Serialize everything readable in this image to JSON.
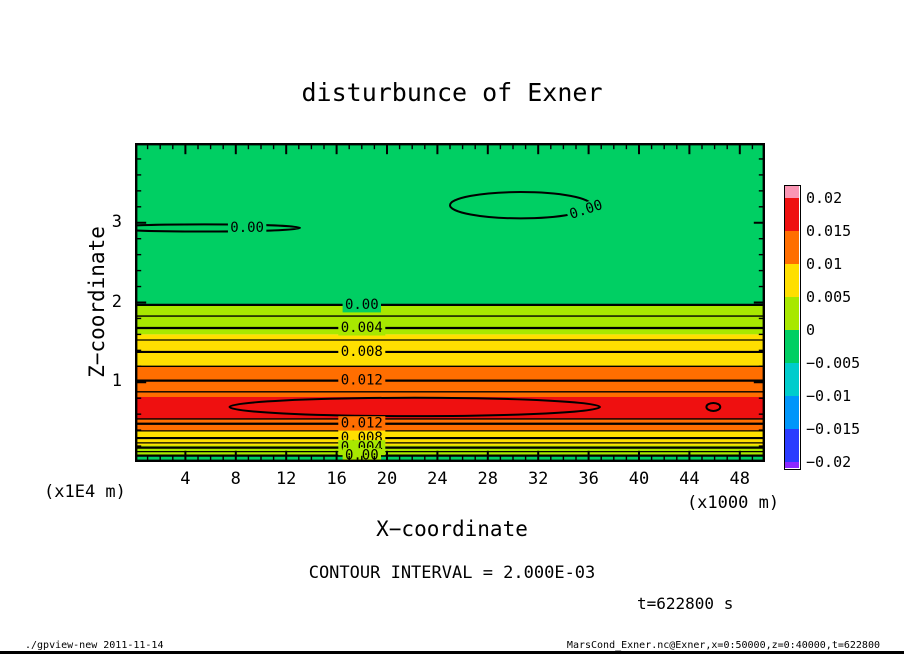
{
  "chart_data": {
    "type": "filled_contour",
    "title": "disturbunce of Exner",
    "xlabel": "X−coordinate",
    "ylabel": "Z−coordinate",
    "x_unit": "(x1000 m)",
    "y_unit": "(x1E4 m)",
    "xlim": [
      0,
      50
    ],
    "ylim": [
      0,
      4
    ],
    "x_major_ticks": [
      4,
      8,
      12,
      16,
      20,
      24,
      28,
      32,
      36,
      40,
      44,
      48
    ],
    "x_minor_step": 1,
    "y_major_ticks": [
      1,
      2,
      3
    ],
    "y_minor_step": 0.2,
    "contour_interval": 0.002,
    "contour_interval_label": "CONTOUR INTERVAL = 2.000E-03",
    "time_label": "t=622800 s",
    "grid": false,
    "legend_position": "right-colorbar",
    "palette": {
      "green": "#00cf63",
      "chartreuse": "#a8e800",
      "yellow": "#ffdf00",
      "orange": "#ff6e00",
      "red": "#ef1010"
    },
    "colorbar": {
      "tick_labels": [
        "0.02",
        "0.015",
        "0.01",
        "0.005",
        "0",
        "−0.005",
        "−0.01",
        "−0.015",
        "−0.02"
      ],
      "tick_values": [
        0.02,
        0.015,
        0.01,
        0.005,
        0,
        -0.005,
        -0.01,
        -0.015,
        -0.02
      ],
      "cell_colors": [
        "#fa96b4",
        "#ef1010",
        "#ff6e00",
        "#ffdf00",
        "#a8e800",
        "#00cf63",
        "#00cccc",
        "#0096fa",
        "#2a3bff",
        "#8c28ff"
      ]
    },
    "fill_bands": [
      {
        "z0": 1.97,
        "z1": 4.0,
        "value_range": "-0.005..0",
        "color": "green"
      },
      {
        "z0": 1.6,
        "z1": 1.97,
        "value_range": "0..0.005",
        "color": "chartreuse"
      },
      {
        "z0": 1.2,
        "z1": 1.6,
        "value_range": "0.005..0.01",
        "color": "yellow"
      },
      {
        "z0": 0.815,
        "z1": 1.2,
        "value_range": "0.01..0.015",
        "color": "orange"
      },
      {
        "z0": 0.54,
        "z1": 0.815,
        "value_range": "0.015..0.02",
        "color": "red"
      },
      {
        "z0": 0.39,
        "z1": 0.54,
        "value_range": "0.01..0.015",
        "color": "orange"
      },
      {
        "z0": 0.207,
        "z1": 0.39,
        "value_range": "0.005..0.01",
        "color": "yellow"
      },
      {
        "z0": 0.08,
        "z1": 0.207,
        "value_range": "0..0.005",
        "color": "chartreuse"
      },
      {
        "z0": 0.0,
        "z1": 0.08,
        "value_range": "-0.005..0",
        "color": "green"
      }
    ],
    "contour_lines": [
      {
        "z": 1.97,
        "value": 0.0,
        "label": "0.00",
        "label_x": 18,
        "label_bg": "green"
      },
      {
        "z": 1.83,
        "value": 0.002
      },
      {
        "z": 1.68,
        "value": 0.004,
        "label": "0.004",
        "label_x": 18,
        "label_bg": "chartreuse"
      },
      {
        "z": 1.53,
        "value": 0.006
      },
      {
        "z": 1.38,
        "value": 0.008,
        "label": "0.008",
        "label_x": 18,
        "label_bg": "yellow"
      },
      {
        "z": 1.2,
        "value": 0.01
      },
      {
        "z": 1.02,
        "value": 0.012,
        "label": "0.012",
        "label_x": 18,
        "label_bg": "orange"
      },
      {
        "z": 0.88,
        "value": 0.014
      },
      {
        "z": 0.54,
        "value": 0.014
      },
      {
        "z": 0.48,
        "value": 0.012,
        "label": "0.012",
        "label_x": 18,
        "label_bg": "orange"
      },
      {
        "z": 0.39,
        "value": 0.01
      },
      {
        "z": 0.3,
        "value": 0.008,
        "label": "0.008",
        "label_x": 18,
        "label_bg": "yellow"
      },
      {
        "z": 0.24,
        "value": 0.006
      },
      {
        "z": 0.18,
        "value": 0.004,
        "label": "0.004",
        "label_x": 18,
        "label_bg": "chartreuse"
      },
      {
        "z": 0.13,
        "value": 0.002
      },
      {
        "z": 0.08,
        "value": 0.0,
        "label": "0.00",
        "label_x": 18,
        "label_bg": "chartreuse"
      }
    ],
    "closed_contours": [
      {
        "cx": 5.5,
        "cz": 2.935,
        "rx": 7.6,
        "rz": 0.045,
        "value": 0.0,
        "label": "0.00",
        "label_x": 8.9,
        "label_z": 2.935,
        "label_angle": 0,
        "label_bg": "green"
      },
      {
        "cx": 30.6,
        "cz": 3.22,
        "rx": 5.6,
        "rz": 0.165,
        "value": 0.0,
        "label": "0.00",
        "label_x": 35.8,
        "label_z": 3.16,
        "label_angle": -18,
        "label_bg": "green"
      },
      {
        "cx": 22.2,
        "cz": 0.69,
        "rx": 14.7,
        "rz": 0.115,
        "value": 0.016
      },
      {
        "cx": 45.9,
        "cz": 0.69,
        "rx": 0.55,
        "rz": 0.05,
        "value": 0.016
      }
    ]
  },
  "footer": {
    "left": "./gpview-new  2011-11-14",
    "right": "MarsCond_Exner.nc@Exner,x=0:50000,z=0:40000,t=622800"
  }
}
